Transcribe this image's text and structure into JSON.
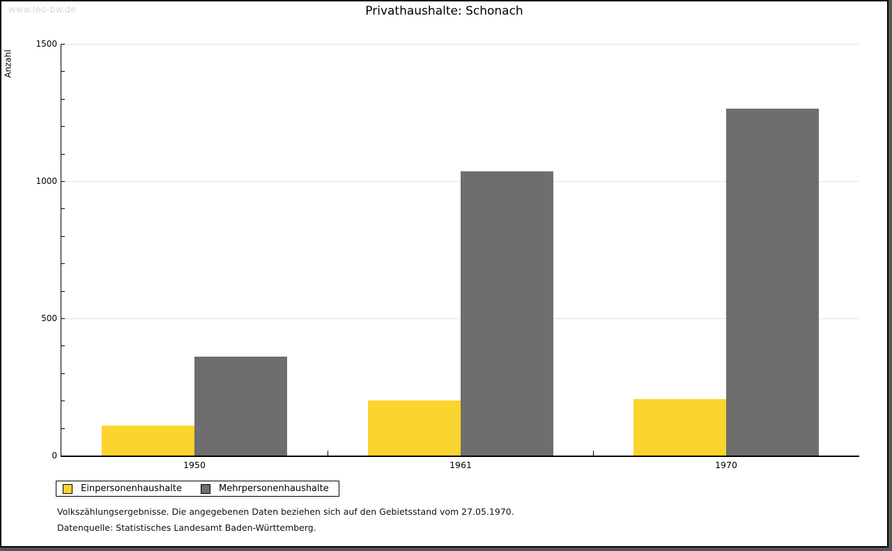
{
  "watermark": "www.leo-bw.de",
  "chart_data": {
    "type": "bar",
    "title": "Privathaushalte: Schonach",
    "xlabel": "",
    "ylabel": "Anzahl",
    "categories": [
      "1950",
      "1961",
      "1970"
    ],
    "series": [
      {
        "name": "Einpersonenhaushalte",
        "color": "#FCD42E",
        "values": [
          110,
          200,
          205
        ]
      },
      {
        "name": "Mehrpersonenhaushalte",
        "color": "#6E6E6E",
        "values": [
          360,
          1035,
          1265
        ]
      }
    ],
    "ylim": [
      0,
      1500
    ],
    "y_ticks": [
      0,
      500,
      1000,
      1500
    ],
    "minor_tick_interval": 100,
    "grid": "horizontal-light-gray",
    "legend_position": "bottom-left"
  },
  "footnotes": [
    "Volkszählungsergebnisse. Die angegebenen Daten beziehen sich auf den Gebietsstand vom 27.05.1970.",
    "Datenquelle: Statistisches Landesamt Baden-Württemberg."
  ]
}
